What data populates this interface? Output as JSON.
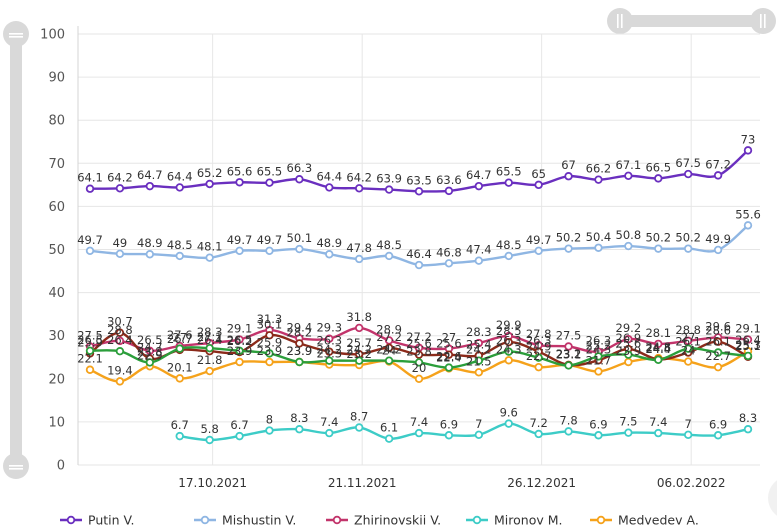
{
  "chart_data": {
    "type": "line",
    "x_tick_labels": [
      "17.10.2021",
      "21.11.2021",
      "26.12.2021",
      "06.02.2022"
    ],
    "y_ticks": [
      0,
      10,
      20,
      30,
      40,
      50,
      60,
      70,
      80,
      90,
      100
    ],
    "ylim": [
      0,
      100
    ],
    "grid": true,
    "legend_position": "bottom",
    "series": [
      {
        "name": "Putin V.",
        "color": "#6a2fbf",
        "values": [
          64.1,
          64.2,
          64.7,
          64.4,
          65.2,
          65.6,
          65.5,
          66.3,
          64.4,
          64.2,
          63.9,
          63.5,
          63.6,
          64.7,
          65.5,
          65,
          67,
          66.2,
          67.1,
          66.5,
          67.5,
          67.2,
          73
        ]
      },
      {
        "name": "Mishustin V.",
        "color": "#8fb6e3",
        "values": [
          49.7,
          49,
          48.9,
          48.5,
          48.1,
          49.7,
          49.7,
          50.1,
          48.9,
          47.8,
          48.5,
          46.4,
          46.8,
          47.4,
          48.5,
          49.7,
          50.2,
          50.4,
          50.8,
          50.2,
          50.2,
          49.9,
          55.6
        ]
      },
      {
        "name": "Zhirinovskii V.",
        "color": "#c2346b",
        "values": [
          27.5,
          28.8,
          26.5,
          27.6,
          28.3,
          29.1,
          31.3,
          29.4,
          29.3,
          31.8,
          28.9,
          27.2,
          27,
          28.3,
          29.9,
          27.8,
          27.5,
          26.3,
          29.2,
          28.1,
          28.8,
          29.6,
          29.1
        ]
      },
      {
        "name": "Mironov M.",
        "color": "#3dccc7",
        "values": [
          null,
          null,
          null,
          6.7,
          5.8,
          6.7,
          8,
          8.3,
          7.4,
          8.7,
          6.1,
          7.4,
          6.9,
          7,
          9.6,
          7.2,
          7.8,
          6.9,
          7.5,
          7.4,
          7,
          6.9,
          8.3
        ]
      },
      {
        "name": "Medvedev A.",
        "color": "#f5a21b",
        "values": [
          22.1,
          19.4,
          22.9,
          20.1,
          21.8,
          23.9,
          23.9,
          23.9,
          23.3,
          23.2,
          24.0,
          20,
          22.4,
          21.5,
          24.3,
          22.7,
          23.2,
          21.7,
          23.9,
          24.8,
          24.0,
          22.7,
          26.4
        ]
      },
      {
        "name": "",
        "color": "#8b2a1a",
        "values": [
          25.9,
          30.7,
          24.7,
          26.7,
          26.4,
          26.2,
          30.1,
          28.2,
          26.3,
          25.7,
          27.2,
          25.6,
          25.6,
          25.4,
          28.5,
          26.3,
          23.2,
          24.3,
          26.9,
          24.5,
          26.1,
          28.6,
          25.1
        ]
      },
      {
        "name": "",
        "color": "#2b9e3b",
        "values": [
          26.5,
          26.4,
          23.8,
          27.0,
          27.1,
          26.5,
          25.9,
          23.9,
          24.2,
          24.2,
          24.2,
          23.8,
          22.6,
          24.2,
          26.3,
          24.9,
          23.1,
          25.2,
          25.6,
          24.4,
          27.0,
          26.1,
          25.3
        ]
      }
    ]
  },
  "slider_icons": [
    "pause-handle-icon",
    "pause-handle-icon"
  ]
}
